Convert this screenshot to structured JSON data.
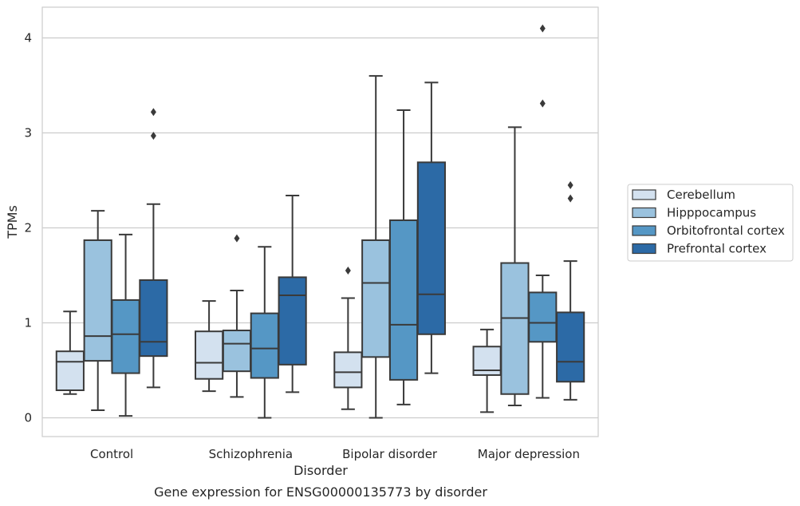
{
  "chart_data": {
    "type": "box",
    "title": "",
    "caption": "Gene expression for ENSG00000135773 by disorder",
    "xlabel": "Disorder",
    "ylabel": "TPMs",
    "categories": [
      "Control",
      "Schizophrenia",
      "Bipolar disorder",
      "Major depression"
    ],
    "yticks": [
      "0",
      "1",
      "2",
      "3",
      "4"
    ],
    "ylim": [
      -0.2,
      4.3
    ],
    "grid": "horizontal",
    "legend_position": "right",
    "series": [
      {
        "name": "Cerebellum",
        "color": "#d3e1ef",
        "boxes": [
          {
            "whislo": 0.25,
            "q1": 0.29,
            "med": 0.59,
            "q3": 0.7,
            "whishi": 1.12,
            "fliers": []
          },
          {
            "whislo": 0.28,
            "q1": 0.41,
            "med": 0.58,
            "q3": 0.91,
            "whishi": 1.23,
            "fliers": []
          },
          {
            "whislo": 0.09,
            "q1": 0.32,
            "med": 0.48,
            "q3": 0.69,
            "whishi": 1.26,
            "fliers": [
              1.55
            ]
          },
          {
            "whislo": 0.06,
            "q1": 0.45,
            "med": 0.5,
            "q3": 0.75,
            "whishi": 0.93,
            "fliers": []
          }
        ]
      },
      {
        "name": "Hipppocampus",
        "color": "#9ac2de",
        "boxes": [
          {
            "whislo": 0.08,
            "q1": 0.6,
            "med": 0.86,
            "q3": 1.87,
            "whishi": 2.18,
            "fliers": []
          },
          {
            "whislo": 0.22,
            "q1": 0.49,
            "med": 0.78,
            "q3": 0.92,
            "whishi": 1.34,
            "fliers": [
              1.89
            ]
          },
          {
            "whislo": 0.0,
            "q1": 0.64,
            "med": 1.42,
            "q3": 1.87,
            "whishi": 3.6,
            "fliers": []
          },
          {
            "whislo": 0.13,
            "q1": 0.25,
            "med": 1.05,
            "q3": 1.63,
            "whishi": 3.06,
            "fliers": []
          }
        ]
      },
      {
        "name": "Orbitofrontal cortex",
        "color": "#5597c5",
        "boxes": [
          {
            "whislo": 0.02,
            "q1": 0.47,
            "med": 0.88,
            "q3": 1.24,
            "whishi": 1.93,
            "fliers": []
          },
          {
            "whislo": 0.0,
            "q1": 0.42,
            "med": 0.73,
            "q3": 1.1,
            "whishi": 1.8,
            "fliers": []
          },
          {
            "whislo": 0.14,
            "q1": 0.4,
            "med": 0.98,
            "q3": 2.08,
            "whishi": 3.24,
            "fliers": []
          },
          {
            "whislo": 0.21,
            "q1": 0.8,
            "med": 1.0,
            "q3": 1.32,
            "whishi": 1.5,
            "fliers": [
              3.31,
              4.1
            ]
          }
        ]
      },
      {
        "name": "Prefrontal cortex",
        "color": "#2c6aa6",
        "boxes": [
          {
            "whislo": 0.32,
            "q1": 0.65,
            "med": 0.8,
            "q3": 1.45,
            "whishi": 2.25,
            "fliers": [
              2.97,
              3.22
            ]
          },
          {
            "whislo": 0.27,
            "q1": 0.56,
            "med": 1.29,
            "q3": 1.48,
            "whishi": 2.34,
            "fliers": []
          },
          {
            "whislo": 0.47,
            "q1": 0.88,
            "med": 1.3,
            "q3": 2.69,
            "whishi": 3.53,
            "fliers": []
          },
          {
            "whislo": 0.19,
            "q1": 0.38,
            "med": 0.59,
            "q3": 1.11,
            "whishi": 1.65,
            "fliers": [
              2.31,
              2.45
            ]
          }
        ]
      }
    ]
  }
}
